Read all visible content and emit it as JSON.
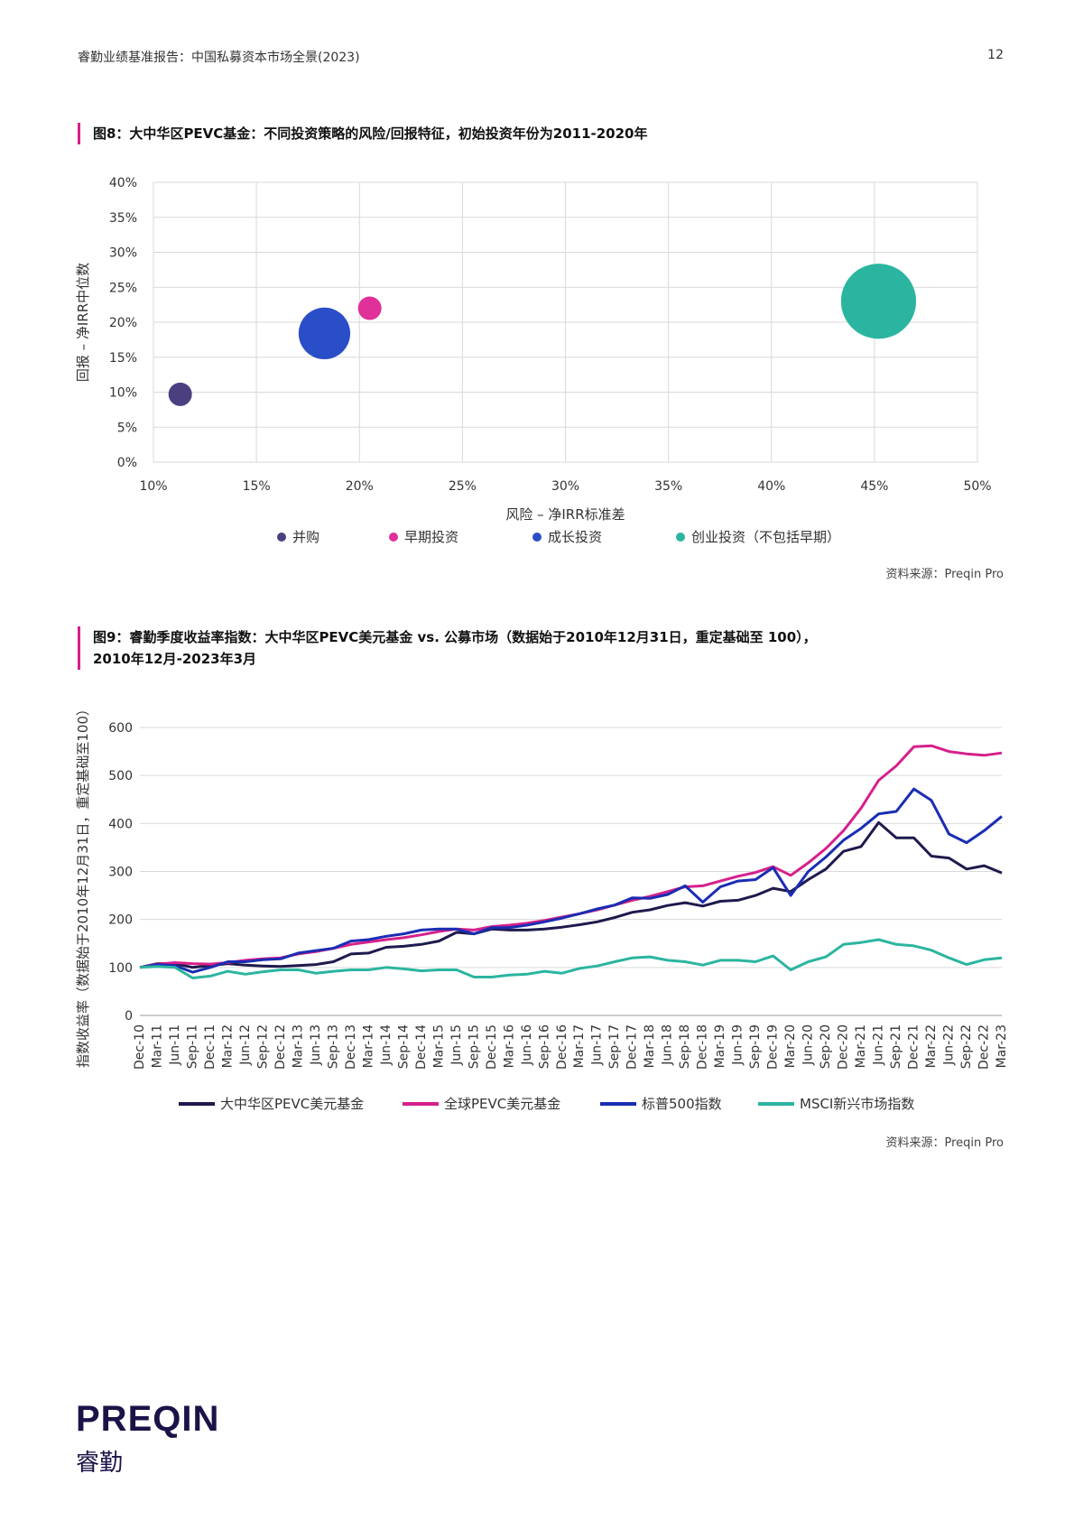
{
  "header": {
    "report_title": "睿勤业绩基准报告：中国私募资本市场全景(2023)",
    "page_number": "12"
  },
  "fig8": {
    "title": "图8：大中华区PEVC基金：不同投资策略的风险/回报特征，初始投资年份为2011-2020年",
    "source": "资料来源：Preqin Pro"
  },
  "fig9": {
    "title_line1": "图9：睿勤季度收益率指数：大中华区PEVC美元基金 vs. 公募市场（数据始于2010年12月31日，重定基础至 100），",
    "title_line2": "2010年12月-2023年3月",
    "source": "资料来源：Preqin Pro"
  },
  "logo": {
    "main": "PREQIN",
    "sub": "睿勤"
  },
  "chart_data": [
    {
      "type": "scatter",
      "title": "",
      "xlabel": "风险 – 净IRR标准差",
      "ylabel": "回报 – 净IRR中位数",
      "xlim": [
        10,
        50
      ],
      "ylim": [
        0,
        40
      ],
      "x_ticks": [
        "10%",
        "15%",
        "20%",
        "25%",
        "30%",
        "35%",
        "40%",
        "45%",
        "50%"
      ],
      "y_ticks": [
        "0%",
        "5%",
        "10%",
        "15%",
        "20%",
        "25%",
        "30%",
        "35%",
        "40%"
      ],
      "grid": true,
      "legend_position": "bottom",
      "series": [
        {
          "name": "并购",
          "color": "#4b3f7f",
          "x": 11.3,
          "y": 9.7,
          "size": 1.0
        },
        {
          "name": "早期投资",
          "color": "#e0309a",
          "x": 20.5,
          "y": 22.0,
          "size": 1.0
        },
        {
          "name": "成长投资",
          "color": "#2a4ec8",
          "x": 18.3,
          "y": 18.4,
          "size": 2.2
        },
        {
          "name": "创业投资（不包括早期）",
          "color": "#2bb5a0",
          "x": 45.2,
          "y": 23.0,
          "size": 3.2
        }
      ]
    },
    {
      "type": "line",
      "title": "",
      "xlabel": "",
      "ylabel": "指数收益率（数据始于2010年12月31日，重定基础至100）",
      "ylim": [
        0,
        600
      ],
      "y_ticks": [
        "0",
        "100",
        "200",
        "300",
        "400",
        "500",
        "600"
      ],
      "grid": true,
      "legend_position": "bottom",
      "categories": [
        "Dec-10",
        "Mar-11",
        "Jun-11",
        "Sep-11",
        "Dec-11",
        "Mar-12",
        "Jun-12",
        "Sep-12",
        "Dec-12",
        "Mar-13",
        "Jun-13",
        "Sep-13",
        "Dec-13",
        "Mar-14",
        "Jun-14",
        "Sep-14",
        "Dec-14",
        "Mar-15",
        "Jun-15",
        "Sep-15",
        "Dec-15",
        "Mar-16",
        "Jun-16",
        "Sep-16",
        "Dec-16",
        "Mar-17",
        "Jun-17",
        "Sep-17",
        "Dec-17",
        "Mar-18",
        "Jun-18",
        "Sep-18",
        "Dec-18",
        "Mar-19",
        "Jun-19",
        "Sep-19",
        "Dec-19",
        "Mar-20",
        "Jun-20",
        "Sep-20",
        "Dec-20",
        "Mar-21",
        "Jun-21",
        "Sep-21",
        "Dec-21",
        "Mar-22",
        "Jun-22",
        "Sep-22",
        "Dec-22",
        "Mar-23"
      ],
      "series": [
        {
          "name": "大中华区PEVC美元基金",
          "color": "#1e1a4d",
          "values": [
            100,
            108,
            108,
            100,
            104,
            108,
            105,
            103,
            102,
            104,
            106,
            112,
            128,
            130,
            142,
            144,
            148,
            155,
            173,
            170,
            180,
            178,
            178,
            180,
            184,
            189,
            195,
            204,
            215,
            220,
            229,
            235,
            228,
            238,
            240,
            250,
            265,
            258,
            283,
            305,
            342,
            352,
            402,
            370,
            370,
            332,
            328,
            305,
            312,
            297
          ]
        },
        {
          "name": "全球PEVC美元基金",
          "color": "#d6208c",
          "values": [
            100,
            107,
            110,
            108,
            107,
            110,
            115,
            118,
            120,
            128,
            133,
            140,
            148,
            153,
            158,
            162,
            168,
            175,
            180,
            178,
            185,
            188,
            192,
            198,
            205,
            212,
            220,
            230,
            240,
            248,
            258,
            268,
            270,
            280,
            290,
            298,
            310,
            292,
            318,
            348,
            385,
            432,
            490,
            520,
            560,
            562,
            550,
            545,
            542,
            547
          ]
        },
        {
          "name": "标普500指数",
          "color": "#1a2db3",
          "values": [
            100,
            106,
            104,
            90,
            100,
            112,
            112,
            116,
            118,
            130,
            135,
            140,
            155,
            158,
            165,
            170,
            178,
            180,
            180,
            170,
            183,
            183,
            188,
            195,
            203,
            212,
            222,
            230,
            245,
            244,
            252,
            270,
            236,
            268,
            280,
            283,
            308,
            250,
            300,
            330,
            365,
            390,
            420,
            425,
            472,
            448,
            378,
            360,
            385,
            415
          ]
        },
        {
          "name": "MSCI新兴市场指数",
          "color": "#2bb5a0",
          "values": [
            100,
            102,
            100,
            78,
            82,
            92,
            86,
            91,
            95,
            95,
            88,
            92,
            95,
            95,
            100,
            97,
            93,
            95,
            95,
            80,
            80,
            84,
            86,
            92,
            88,
            98,
            103,
            112,
            120,
            122,
            115,
            112,
            105,
            115,
            115,
            112,
            124,
            95,
            112,
            122,
            148,
            152,
            158,
            148,
            145,
            136,
            120,
            106,
            116,
            120
          ]
        }
      ]
    }
  ]
}
